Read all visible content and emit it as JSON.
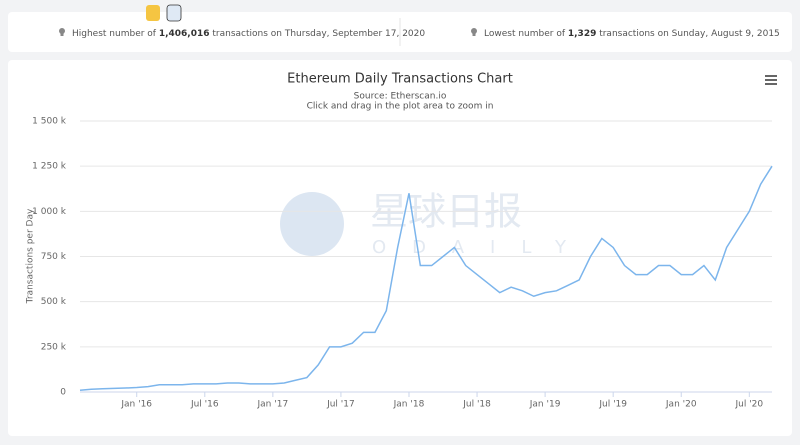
{
  "stats": {
    "highest": {
      "prefix": "Highest number of ",
      "value": "1,406,016",
      "suffix": " transactions on Thursday, September 17, 2020"
    },
    "lowest": {
      "prefix": "Lowest number of ",
      "value": "1,329",
      "suffix": " transactions on Sunday, August 9, 2015"
    }
  },
  "watermark": {
    "cn": "星球日报",
    "en": "ODAILY"
  },
  "chart_data": {
    "type": "line",
    "title": "Ethereum Daily Transactions Chart",
    "subtitle": "Source: Etherscan.io",
    "note": "Click and drag in the plot area to zoom in",
    "y_label": "Transactions per Day",
    "grid": true,
    "x": [
      "2015-08",
      "2015-09",
      "2015-10",
      "2015-11",
      "2015-12",
      "2016-01",
      "2016-02",
      "2016-03",
      "2016-04",
      "2016-05",
      "2016-06",
      "2016-07",
      "2016-08",
      "2016-09",
      "2016-10",
      "2016-11",
      "2016-12",
      "2017-01",
      "2017-02",
      "2017-03",
      "2017-04",
      "2017-05",
      "2017-06",
      "2017-07",
      "2017-08",
      "2017-09",
      "2017-10",
      "2017-11",
      "2017-12",
      "2018-01",
      "2018-02",
      "2018-03",
      "2018-04",
      "2018-05",
      "2018-06",
      "2018-07",
      "2018-08",
      "2018-09",
      "2018-10",
      "2018-11",
      "2018-12",
      "2019-01",
      "2019-02",
      "2019-03",
      "2019-04",
      "2019-05",
      "2019-06",
      "2019-07",
      "2019-08",
      "2019-09",
      "2019-10",
      "2019-11",
      "2019-12",
      "2020-01",
      "2020-02",
      "2020-03",
      "2020-04",
      "2020-05",
      "2020-06",
      "2020-07",
      "2020-08",
      "2020-09"
    ],
    "series": [
      {
        "name": "Transactions",
        "color": "#7cb5ec",
        "values": [
          10000,
          15000,
          18000,
          20000,
          22000,
          25000,
          30000,
          40000,
          40000,
          40000,
          45000,
          45000,
          45000,
          50000,
          50000,
          45000,
          45000,
          45000,
          50000,
          65000,
          80000,
          150000,
          250000,
          250000,
          270000,
          330000,
          330000,
          450000,
          800000,
          1100000,
          700000,
          700000,
          750000,
          800000,
          700000,
          650000,
          600000,
          550000,
          580000,
          560000,
          530000,
          550000,
          560000,
          590000,
          620000,
          750000,
          850000,
          800000,
          700000,
          650000,
          650000,
          700000,
          700000,
          650000,
          650000,
          700000,
          620000,
          800000,
          900000,
          1000000,
          1150000,
          1250000
        ]
      }
    ],
    "xlim": [
      "2015-08",
      "2020-09"
    ],
    "xticks": [
      {
        "value": "2016-01",
        "label": "Jan '16"
      },
      {
        "value": "2016-07",
        "label": "Jul '16"
      },
      {
        "value": "2017-01",
        "label": "Jan '17"
      },
      {
        "value": "2017-07",
        "label": "Jul '17"
      },
      {
        "value": "2018-01",
        "label": "Jan '18"
      },
      {
        "value": "2018-07",
        "label": "Jul '18"
      },
      {
        "value": "2019-01",
        "label": "Jan '19"
      },
      {
        "value": "2019-07",
        "label": "Jul '19"
      },
      {
        "value": "2020-01",
        "label": "Jan '20"
      },
      {
        "value": "2020-07",
        "label": "Jul '20"
      }
    ],
    "ylim": [
      0,
      1500000
    ],
    "yticks": [
      0,
      {
        "value": 250000,
        "label": "250 k"
      },
      {
        "value": 500000,
        "label": "500 k"
      },
      {
        "value": 750000,
        "label": "750 k"
      },
      {
        "value": 1000000,
        "label": "1 000 k"
      },
      {
        "value": 1250000,
        "label": "1 250 k"
      },
      {
        "value": 1500000,
        "label": "1 500 k"
      }
    ]
  }
}
